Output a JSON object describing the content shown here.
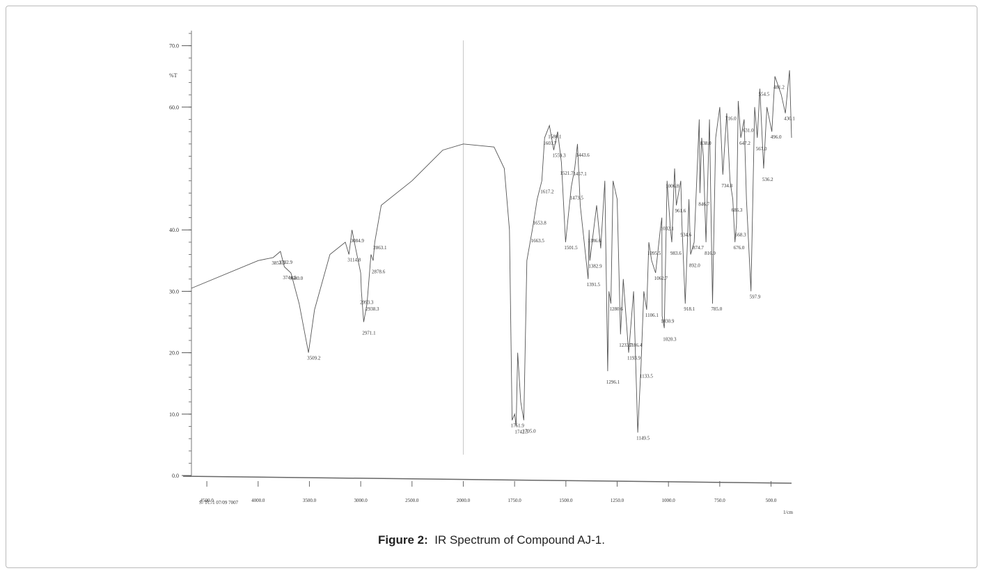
{
  "chart_data": {
    "type": "line",
    "y_label": "%T",
    "x_label": "1/cm",
    "note": "S- TC-1   07/09 7007",
    "color": "#555555",
    "xlim": [
      4650,
      400
    ],
    "x_scale_break": 2000,
    "x_scale_factor": 2,
    "ylim": [
      0,
      72
    ],
    "yticks": [
      {
        "value": 0,
        "label": "0.0"
      },
      {
        "value": 10,
        "label": "10.0"
      },
      {
        "value": 20,
        "label": "20.0"
      },
      {
        "value": 30,
        "label": "30.0"
      },
      {
        "value": 40,
        "label": "40.0"
      },
      {
        "value": 60,
        "label": "60.0"
      },
      {
        "value": 70,
        "label": "70.0"
      }
    ],
    "xticks": [
      {
        "value": 4500,
        "label": "4500.0"
      },
      {
        "value": 4000,
        "label": "4000.0"
      },
      {
        "value": 3500,
        "label": "3500.0"
      },
      {
        "value": 3000,
        "label": "3000.0"
      },
      {
        "value": 2500,
        "label": "2500.0"
      },
      {
        "value": 2000,
        "label": "2000.0"
      },
      {
        "value": 1750,
        "label": "1750.0"
      },
      {
        "value": 1500,
        "label": "1500.0"
      },
      {
        "value": 1250,
        "label": "1250.0"
      },
      {
        "value": 1000,
        "label": "1000.0"
      },
      {
        "value": 750,
        "label": "750.0"
      },
      {
        "value": 500,
        "label": "500.0"
      }
    ],
    "x": [
      4650,
      4000,
      3853.5,
      3782.9,
      3744.5,
      3680,
      3600,
      3509.2,
      3450,
      3300,
      3150,
      3114.8,
      3084.9,
      3050,
      3000,
      2993.3,
      2971.1,
      2938.3,
      2900,
      2878.6,
      2863.1,
      2800,
      2500,
      2200,
      2000,
      1850,
      1800,
      1775,
      1761.9,
      1750,
      1742.5,
      1735,
      1720,
      1705,
      1690,
      1663.5,
      1653.8,
      1640,
      1617.2,
      1603.7,
      1580.1,
      1559.3,
      1540,
      1521.7,
      1501.5,
      1473.5,
      1457.1,
      1443.6,
      1430,
      1391.5,
      1386.6,
      1382.9,
      1350,
      1330,
      1310,
      1296.1,
      1290,
      1280.6,
      1270,
      1250,
      1233.7,
      1220,
      1193.9,
      1186.4,
      1170,
      1149.5,
      1133.5,
      1120,
      1106.1,
      1095.5,
      1082,
      1062.7,
      1040,
      1032.1,
      1030.9,
      1020.3,
      1006.8,
      990,
      983.6,
      970,
      961.6,
      940,
      934.6,
      918.1,
      900,
      892,
      874.7,
      850,
      846.7,
      838,
      830,
      816.9,
      800,
      785,
      770,
      750,
      734.8,
      716,
      700,
      686.3,
      676,
      668.3,
      660,
      647.2,
      631,
      620,
      597.9,
      580,
      567,
      554.5,
      536.2,
      520,
      496,
      481.2,
      450,
      430.1,
      410,
      400
    ],
    "values": [
      30.5,
      35,
      35.5,
      36.5,
      34,
      33,
      28,
      20,
      27,
      36,
      38,
      36,
      40,
      37,
      33,
      30,
      25,
      28,
      36,
      35,
      38,
      44,
      48,
      53,
      54,
      53.5,
      50,
      40,
      9,
      10,
      8,
      20,
      12,
      9,
      35,
      40,
      42,
      45,
      48,
      55,
      57,
      53,
      56,
      51,
      38,
      47,
      50,
      54,
      44,
      32,
      40,
      35,
      44,
      37,
      48,
      17,
      30,
      28,
      48,
      45,
      23,
      32,
      20,
      23,
      30,
      7,
      18,
      30,
      27,
      38,
      35,
      33,
      40,
      42,
      26,
      24,
      48,
      40,
      38,
      50,
      44,
      48,
      41,
      28,
      45,
      36,
      38,
      58,
      46,
      55,
      52,
      38,
      58,
      28,
      55,
      60,
      49,
      59,
      48,
      45,
      38,
      41,
      61,
      55,
      58,
      45,
      30,
      60,
      55,
      63,
      50,
      60,
      56,
      65,
      62,
      59,
      66,
      55
    ],
    "peaks": [
      3853.5,
      3782.9,
      {
        "value": 3680,
        "label": "3680.0"
      },
      3744.5,
      3509.2,
      3084.9,
      3114.8,
      2993.3,
      2938.3,
      2971.1,
      2863.1,
      2878.6,
      1761.9,
      {
        "value": 1705,
        "label": "1705.0"
      },
      1742.5,
      1663.5,
      1653.8,
      1617.2,
      1603.7,
      1580.1,
      1559.3,
      1521.7,
      1501.5,
      1473.5,
      1457.1,
      1443.6,
      1391.5,
      1386.6,
      1382.9,
      1296.1,
      1280.6,
      1233.7,
      1193.9,
      1186.4,
      1149.5,
      1133.5,
      1106.1,
      1095.5,
      1062.7,
      1032.1,
      1030.9,
      1020.3,
      1006.8,
      983.6,
      961.6,
      934.6,
      918.1,
      {
        "value": 892,
        "label": "892.0"
      },
      874.7,
      846.7,
      {
        "value": 838,
        "label": "838.0"
      },
      816.9,
      {
        "value": 785,
        "label": "785.0"
      },
      734.8,
      {
        "value": 716,
        "label": "716.0"
      },
      686.3,
      {
        "value": 676,
        "label": "676.0"
      },
      668.3,
      647.2,
      {
        "value": 631,
        "label": "631.0"
      },
      597.9,
      {
        "value": 567,
        "label": "567.0"
      },
      554.5,
      536.2,
      {
        "value": 496,
        "label": "496.0"
      },
      481.2,
      430.1
    ]
  },
  "figure": {
    "label": "Figure 2:",
    "text": "IR Spectrum of Compound AJ-1."
  }
}
